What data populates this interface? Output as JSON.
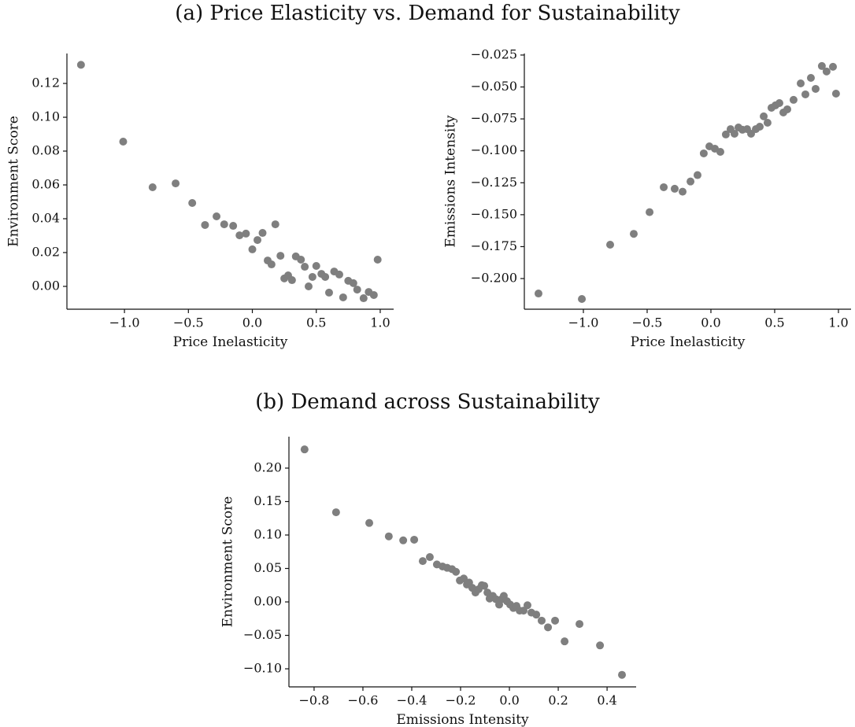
{
  "chart_data": [
    {
      "type": "scatter",
      "title": "(a) Price Elasticity vs. Demand for Sustainability",
      "x_label": "Price Inelasticity",
      "y_label": "Environment Score",
      "color": "#7f7f7f",
      "x": [
        -1.34,
        -1.01,
        -0.78,
        -0.6,
        -0.47,
        -0.37,
        -0.28,
        -0.22,
        -0.15,
        -0.1,
        -0.05,
        0.0,
        0.04,
        0.08,
        0.12,
        0.15,
        0.18,
        0.22,
        0.25,
        0.28,
        0.31,
        0.34,
        0.38,
        0.41,
        0.44,
        0.47,
        0.5,
        0.54,
        0.57,
        0.6,
        0.64,
        0.68,
        0.71,
        0.75,
        0.79,
        0.82,
        0.87,
        0.91,
        0.95,
        0.98
      ],
      "y": [
        0.131,
        0.0856,
        0.0586,
        0.0609,
        0.0493,
        0.0363,
        0.0414,
        0.0367,
        0.0358,
        0.0302,
        0.0312,
        0.0219,
        0.0274,
        0.0316,
        0.0153,
        0.013,
        0.0367,
        0.0181,
        0.0047,
        0.0065,
        0.0037,
        0.0177,
        0.0158,
        0.0116,
        0.0,
        0.0056,
        0.0121,
        0.0074,
        0.0056,
        -0.0037,
        0.0088,
        0.007,
        -0.0065,
        0.0033,
        0.0019,
        -0.0019,
        -0.007,
        -0.0033,
        -0.0051,
        0.0158
      ],
      "xlim": [
        -1.45,
        1.105
      ],
      "ylim": [
        -0.0135,
        0.1377
      ],
      "xticks": [
        {
          "value": -1,
          "label": "−1.0"
        },
        {
          "value": -0.5,
          "label": "−0.5"
        },
        {
          "value": 0,
          "label": "0.0"
        },
        0.5,
        {
          "value": 1,
          "label": "1.0"
        }
      ],
      "yticks": [
        {
          "value": 0,
          "label": "0.00"
        },
        0.02,
        0.04,
        0.06,
        0.08,
        {
          "value": 0.1,
          "label": "0.10"
        },
        0.12
      ]
    },
    {
      "type": "scatter",
      "x_label": "Price Inelasticity",
      "y_label": "Emissions Intensity",
      "color": "#7f7f7f",
      "x": [
        -1.352,
        -1.012,
        -0.79,
        -0.605,
        -0.481,
        -0.37,
        -0.284,
        -0.222,
        -0.16,
        -0.105,
        -0.056,
        -0.012,
        0.031,
        0.074,
        0.117,
        0.154,
        0.185,
        0.216,
        0.247,
        0.284,
        0.315,
        0.352,
        0.383,
        0.414,
        0.444,
        0.475,
        0.506,
        0.537,
        0.568,
        0.599,
        0.648,
        0.704,
        0.741,
        0.784,
        0.821,
        0.87,
        0.907,
        0.957,
        0.981
      ],
      "y": [
        -0.2117,
        -0.216,
        -0.1735,
        -0.165,
        -0.148,
        -0.1285,
        -0.1297,
        -0.132,
        -0.124,
        -0.119,
        -0.102,
        -0.0965,
        -0.0983,
        -0.1008,
        -0.0872,
        -0.083,
        -0.0866,
        -0.0817,
        -0.0835,
        -0.083,
        -0.0866,
        -0.083,
        -0.0811,
        -0.073,
        -0.078,
        -0.0663,
        -0.0644,
        -0.0626,
        -0.07,
        -0.0675,
        -0.0601,
        -0.0472,
        -0.0558,
        -0.0429,
        -0.0515,
        -0.0336,
        -0.0379,
        -0.0342,
        -0.0552
      ],
      "xlim": [
        -1.463,
        1.099
      ],
      "ylim": [
        -0.224,
        -0.0238
      ],
      "xticks": [
        {
          "value": -1,
          "label": "−1.0"
        },
        {
          "value": -0.5,
          "label": "−0.5"
        },
        {
          "value": 0,
          "label": "0.0"
        },
        0.5,
        {
          "value": 1,
          "label": "1.0"
        }
      ],
      "yticks": [
        {
          "value": -0.2,
          "label": "−0.200"
        },
        {
          "value": -0.175,
          "label": "−0.175"
        },
        {
          "value": -0.15,
          "label": "−0.150"
        },
        {
          "value": -0.125,
          "label": "−0.125"
        },
        {
          "value": -0.1,
          "label": "−0.100"
        },
        {
          "value": -0.075,
          "label": "−0.075"
        },
        {
          "value": -0.05,
          "label": "−0.050"
        },
        {
          "value": -0.025,
          "label": "−0.025"
        }
      ]
    },
    {
      "type": "scatter",
      "title": "(b) Demand across Sustainability",
      "x_label": "Emissions Intensity",
      "y_label": "Environment Score",
      "color": "#7f7f7f",
      "x": [
        -0.839,
        -0.71,
        -0.574,
        -0.494,
        -0.435,
        -0.39,
        -0.355,
        -0.326,
        -0.297,
        -0.274,
        -0.255,
        -0.235,
        -0.219,
        -0.203,
        -0.187,
        -0.174,
        -0.165,
        -0.152,
        -0.139,
        -0.126,
        -0.113,
        -0.103,
        -0.09,
        -0.081,
        -0.068,
        -0.055,
        -0.042,
        -0.032,
        -0.023,
        -0.01,
        0.003,
        0.016,
        0.029,
        0.042,
        0.058,
        0.074,
        0.09,
        0.11,
        0.132,
        0.158,
        0.187,
        0.226,
        0.287,
        0.371,
        0.461
      ],
      "y": [
        0.228,
        0.134,
        0.118,
        0.098,
        0.092,
        0.093,
        0.061,
        0.067,
        0.056,
        0.053,
        0.051,
        0.049,
        0.045,
        0.032,
        0.035,
        0.026,
        0.029,
        0.021,
        0.014,
        0.019,
        0.025,
        0.024,
        0.014,
        0.005,
        0.009,
        0.004,
        -0.004,
        0.004,
        0.009,
        0.001,
        -0.004,
        -0.009,
        -0.006,
        -0.013,
        -0.013,
        -0.005,
        -0.016,
        -0.019,
        -0.028,
        -0.038,
        -0.028,
        -0.059,
        -0.033,
        -0.065,
        -0.109
      ],
      "xlim": [
        -0.903,
        0.519
      ],
      "ylim": [
        -0.127,
        0.247
      ],
      "xticks": [
        {
          "value": -0.8,
          "label": "−0.8"
        },
        {
          "value": -0.6,
          "label": "−0.6"
        },
        {
          "value": -0.4,
          "label": "−0.4"
        },
        {
          "value": -0.2,
          "label": "−0.2"
        },
        {
          "value": 0,
          "label": "0.0"
        },
        0.2,
        0.4
      ],
      "yticks": [
        {
          "value": -0.1,
          "label": "−0.10"
        },
        {
          "value": -0.05,
          "label": "−0.05"
        },
        {
          "value": 0,
          "label": "0.00"
        },
        0.05,
        {
          "value": 0.1,
          "label": "0.10"
        },
        0.15,
        {
          "value": 0.2,
          "label": "0.20"
        }
      ]
    }
  ]
}
